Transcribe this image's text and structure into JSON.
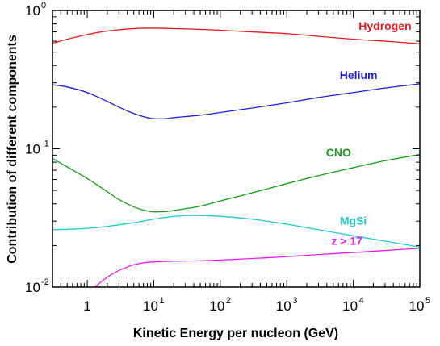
{
  "chart_data": {
    "type": "line",
    "title": "",
    "xlabel": "Kinetic Energy per nucleon (GeV)",
    "ylabel": "Contribution of different components",
    "x_scale": "log",
    "y_scale": "log",
    "xlim": [
      0.3,
      100000
    ],
    "ylim": [
      0.01,
      1.0
    ],
    "grid": false,
    "x_ticks": [
      {
        "base": "10",
        "exp": "0"
      },
      {
        "base": "10",
        "exp": "1"
      },
      {
        "base": "10",
        "exp": "2"
      },
      {
        "base": "10",
        "exp": "3"
      },
      {
        "base": "10",
        "exp": "4"
      },
      {
        "base": "10",
        "exp": "5"
      }
    ],
    "x_ticks_first": "1",
    "y_ticks": [
      {
        "base": "10",
        "exp": "0",
        "value": 1.0
      },
      {
        "base": "10",
        "exp": "-1",
        "value": 0.1
      },
      {
        "base": "10",
        "exp": "-2",
        "value": 0.01
      }
    ],
    "series": [
      {
        "name": "Hydrogen",
        "color": "#e31a1c",
        "x": [
          0.3,
          0.5,
          1,
          2,
          5,
          10,
          20,
          50,
          100,
          300,
          1000,
          3000,
          10000,
          30000,
          100000
        ],
        "values": [
          0.58,
          0.62,
          0.67,
          0.71,
          0.74,
          0.745,
          0.74,
          0.73,
          0.72,
          0.7,
          0.68,
          0.65,
          0.62,
          0.6,
          0.575
        ]
      },
      {
        "name": "Helium",
        "color": "#1f1fd0",
        "x": [
          0.3,
          0.5,
          1,
          2,
          3,
          5,
          8,
          10,
          15,
          20,
          50,
          100,
          300,
          1000,
          3000,
          10000,
          30000,
          100000
        ],
        "values": [
          0.29,
          0.28,
          0.255,
          0.22,
          0.2,
          0.18,
          0.168,
          0.165,
          0.165,
          0.168,
          0.175,
          0.183,
          0.197,
          0.215,
          0.235,
          0.255,
          0.275,
          0.295
        ]
      },
      {
        "name": "CNO",
        "color": "#1a9a1a",
        "x": [
          0.3,
          0.5,
          1,
          2,
          3,
          5,
          8,
          10,
          15,
          20,
          50,
          100,
          300,
          1000,
          3000,
          10000,
          30000,
          100000
        ],
        "values": [
          0.085,
          0.074,
          0.061,
          0.049,
          0.043,
          0.038,
          0.0355,
          0.035,
          0.0352,
          0.0358,
          0.0385,
          0.042,
          0.048,
          0.056,
          0.064,
          0.073,
          0.082,
          0.091
        ]
      },
      {
        "name": "MgSi",
        "color": "#1fc8c8",
        "x": [
          0.3,
          0.5,
          1,
          2,
          5,
          10,
          20,
          40,
          100,
          300,
          1000,
          3000,
          10000,
          30000,
          100000
        ],
        "values": [
          0.026,
          0.0262,
          0.0266,
          0.0275,
          0.0292,
          0.031,
          0.0325,
          0.033,
          0.0325,
          0.031,
          0.0285,
          0.026,
          0.0235,
          0.0215,
          0.0195
        ]
      },
      {
        "name": "z > 17",
        "color": "#e61fe6",
        "x": [
          1.3,
          2,
          3,
          5,
          8,
          10,
          20,
          50,
          100,
          300,
          1000,
          3000,
          10000,
          30000,
          100000
        ],
        "values": [
          0.01,
          0.0118,
          0.0132,
          0.0145,
          0.0151,
          0.0152,
          0.0154,
          0.0155,
          0.0157,
          0.0161,
          0.0166,
          0.0172,
          0.0178,
          0.0184,
          0.0191
        ]
      }
    ]
  }
}
